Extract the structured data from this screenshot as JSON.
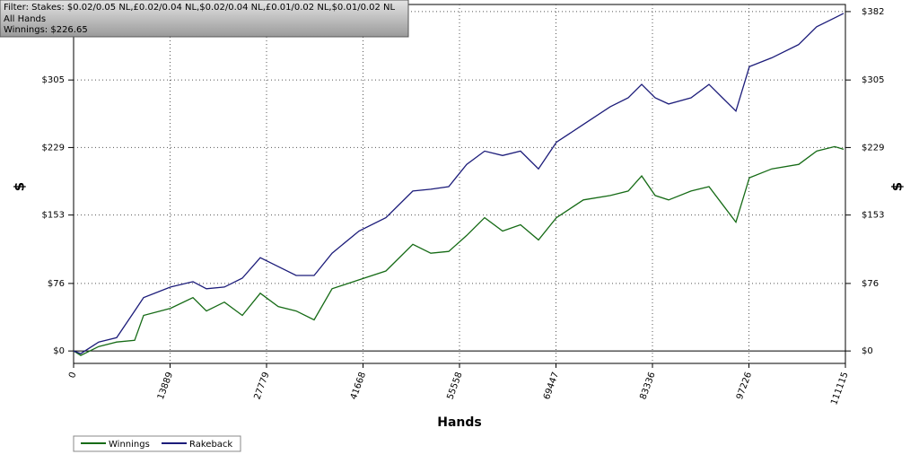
{
  "chart_data": {
    "type": "line",
    "annotations": [
      "Filter: Stakes: $0.02/0.05 NL,£0.02/0.04 NL,$0.02/0.04 NL,£0.01/0.02 NL,$0.01/0.02 NL",
      "All Hands",
      "Winnings: $226.65"
    ],
    "xlabel": "Hands",
    "ylabel": "$",
    "x": [
      0,
      1034,
      3618,
      6202,
      8786,
      10078,
      13954,
      17184,
      19122,
      21706,
      24290,
      26874,
      29458,
      32042,
      34626,
      37210,
      41086,
      44962,
      48838,
      51422,
      54006,
      56590,
      59174,
      61758,
      64342,
      66926,
      69510,
      73386,
      77262,
      79846,
      81784,
      83722,
      85660,
      88890,
      91474,
      93412,
      95350,
      97288,
      100518,
      104394,
      106978,
      109562,
      110854
    ],
    "series": [
      {
        "name": "Winnings",
        "color": "#166b16",
        "values": [
          0,
          -5,
          5,
          10,
          12,
          40,
          48,
          60,
          45,
          55,
          40,
          65,
          50,
          45,
          35,
          70,
          80,
          90,
          120,
          110,
          112,
          130,
          150,
          135,
          142,
          125,
          150,
          170,
          175,
          180,
          197,
          175,
          170,
          180,
          185,
          165,
          145,
          195,
          205,
          210,
          225,
          230,
          227
        ]
      },
      {
        "name": "Rakeback",
        "color": "#1c1c7a",
        "values": [
          0,
          -3,
          10,
          15,
          45,
          60,
          72,
          78,
          70,
          72,
          82,
          105,
          95,
          85,
          85,
          110,
          135,
          150,
          180,
          182,
          185,
          210,
          225,
          220,
          225,
          205,
          235,
          255,
          275,
          285,
          300,
          285,
          278,
          285,
          300,
          285,
          270,
          320,
          330,
          345,
          365,
          375,
          380
        ]
      }
    ],
    "xlim": [
      0,
      111115
    ],
    "xticks": [
      0,
      13889,
      27779,
      41668,
      55558,
      69447,
      83336,
      97226,
      111115
    ],
    "ylim": [
      -14,
      390
    ],
    "yticks": [
      {
        "value": 0,
        "label": "$0"
      },
      {
        "value": 76,
        "label": "$76"
      },
      {
        "value": 153,
        "label": "$153"
      },
      {
        "value": 229,
        "label": "$229"
      },
      {
        "value": 305,
        "label": "$305"
      },
      {
        "value": 382,
        "label": "$382"
      }
    ],
    "grid": true
  }
}
